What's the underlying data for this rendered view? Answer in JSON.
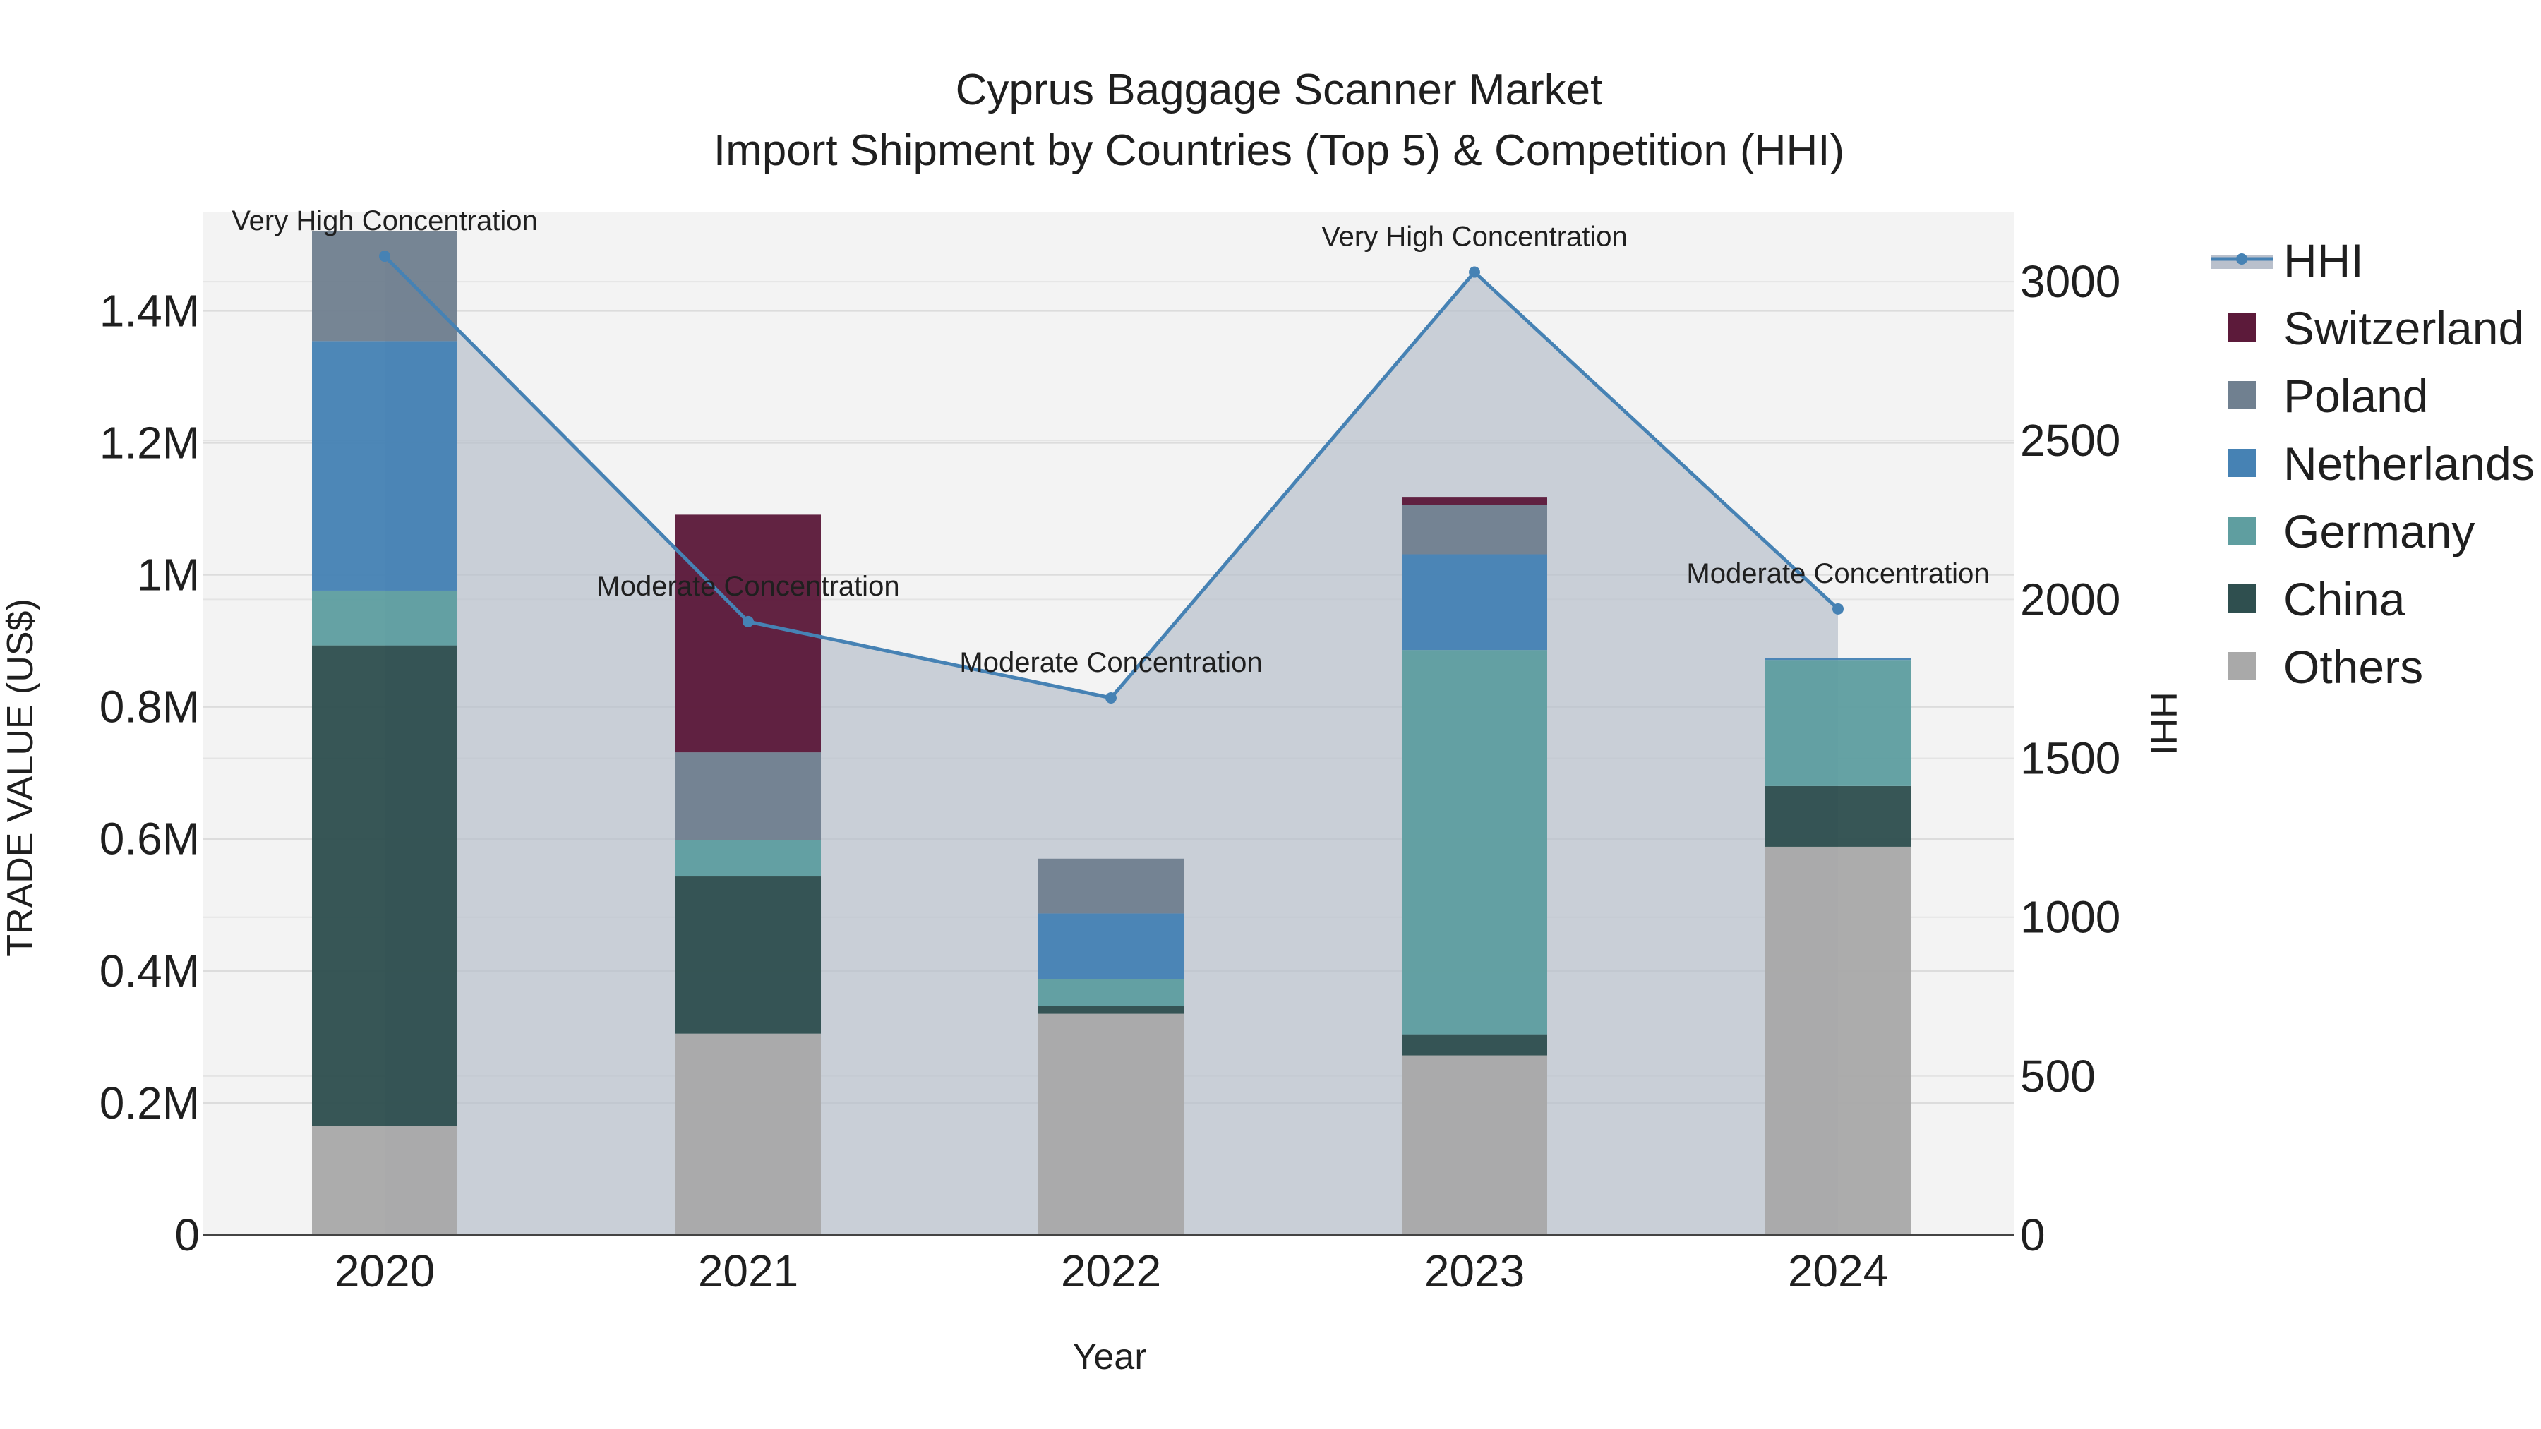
{
  "chart_data": {
    "type": "bar",
    "title_line1": "Cyprus Baggage Scanner Market",
    "title_line2": "Import Shipment by Countries (Top 5) & Competition (HHI)",
    "xlabel": "Year",
    "ylabel": "TRADE VALUE (US$)",
    "y2label": "HHI",
    "categories": [
      "2020",
      "2021",
      "2022",
      "2023",
      "2024"
    ],
    "ylim": [
      0,
      1550000
    ],
    "y_ticks": [
      0,
      200000,
      400000,
      600000,
      800000,
      1000000,
      1200000,
      1400000
    ],
    "y_tick_labels": [
      "0",
      "0.2M",
      "0.4M",
      "0.6M",
      "0.8M",
      "1M",
      "1.2M",
      "1.4M"
    ],
    "y2lim": [
      0,
      3220
    ],
    "y2_ticks": [
      0,
      500,
      1000,
      1500,
      2000,
      2500,
      3000
    ],
    "y2_tick_labels": [
      "0",
      "500",
      "1000",
      "1500",
      "2000",
      "2500",
      "3000"
    ],
    "stack_order": [
      "Others",
      "China",
      "Germany",
      "Netherlands",
      "Poland",
      "Switzerland"
    ],
    "series": [
      {
        "name": "Others",
        "color": "#a9a9a9",
        "values": [
          165000,
          305000,
          335000,
          272000,
          588000
        ]
      },
      {
        "name": "China",
        "color": "#2f4f4f",
        "values": [
          728000,
          238000,
          12000,
          32000,
          92000
        ]
      },
      {
        "name": "Germany",
        "color": "#5f9ea0",
        "values": [
          83000,
          55000,
          40000,
          582000,
          191000
        ]
      },
      {
        "name": "Netherlands",
        "color": "#4682b4",
        "values": [
          378000,
          0,
          100000,
          145000,
          3000
        ]
      },
      {
        "name": "Poland",
        "color": "#708090",
        "values": [
          167000,
          133000,
          83000,
          75000,
          0
        ]
      },
      {
        "name": "Switzerland",
        "color": "#5c1a3a",
        "values": [
          0,
          360000,
          0,
          12000,
          0
        ]
      }
    ],
    "hhi": {
      "name": "HHI",
      "color": "#4682b4",
      "values": [
        3080,
        1930,
        1690,
        3030,
        1970
      ],
      "labels": [
        "Very High Concentration",
        "Moderate Concentration",
        "Moderate Concentration",
        "Very High Concentration",
        "Moderate Concentration"
      ]
    },
    "legend": [
      "HHI",
      "Switzerland",
      "Poland",
      "Netherlands",
      "Germany",
      "China",
      "Others"
    ],
    "legend_position": "right"
  }
}
